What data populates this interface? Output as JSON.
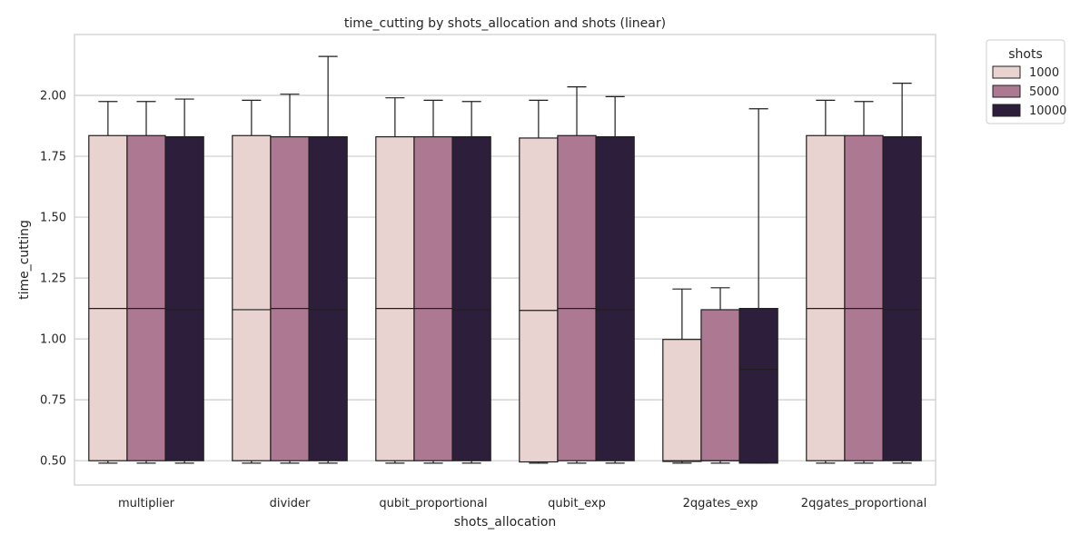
{
  "chart_data": {
    "type": "box",
    "title": "time_cutting by shots_allocation and shots (linear)",
    "xlabel": "shots_allocation",
    "ylabel": "time_cutting",
    "categories": [
      "multiplier",
      "divider",
      "qubit_proportional",
      "qubit_exp",
      "2qgates_exp",
      "2qgates_proportional"
    ],
    "ylim": [
      0.4,
      2.25
    ],
    "yticks": [
      "0.50",
      "0.75",
      "1.00",
      "1.25",
      "1.50",
      "1.75",
      "2.00"
    ],
    "grid": true,
    "legend": {
      "title": "shots",
      "placement": "outside-top-right"
    },
    "series": [
      {
        "name": "1000",
        "color": "#e8d3d0",
        "boxes": [
          {
            "min": 0.49,
            "q1": 0.5,
            "median": 1.125,
            "q3": 1.835,
            "max": 1.975
          },
          {
            "min": 0.49,
            "q1": 0.5,
            "median": 1.12,
            "q3": 1.835,
            "max": 1.98
          },
          {
            "min": 0.49,
            "q1": 0.5,
            "median": 1.125,
            "q3": 1.83,
            "max": 1.99
          },
          {
            "min": 0.49,
            "q1": 0.495,
            "median": 1.117,
            "q3": 1.825,
            "max": 1.98
          },
          {
            "min": 0.49,
            "q1": 0.497,
            "median": 0.5,
            "q3": 0.998,
            "max": 1.205
          },
          {
            "min": 0.49,
            "q1": 0.5,
            "median": 1.125,
            "q3": 1.835,
            "max": 1.98
          }
        ]
      },
      {
        "name": "5000",
        "color": "#ad7892",
        "boxes": [
          {
            "min": 0.49,
            "q1": 0.5,
            "median": 1.125,
            "q3": 1.835,
            "max": 1.975
          },
          {
            "min": 0.49,
            "q1": 0.5,
            "median": 1.125,
            "q3": 1.83,
            "max": 2.005
          },
          {
            "min": 0.49,
            "q1": 0.5,
            "median": 1.125,
            "q3": 1.83,
            "max": 1.98
          },
          {
            "min": 0.49,
            "q1": 0.5,
            "median": 1.125,
            "q3": 1.835,
            "max": 2.035
          },
          {
            "min": 0.49,
            "q1": 0.5,
            "median": 0.5,
            "q3": 1.12,
            "max": 1.21
          },
          {
            "min": 0.49,
            "q1": 0.5,
            "median": 1.125,
            "q3": 1.835,
            "max": 1.975
          }
        ]
      },
      {
        "name": "10000",
        "color": "#2d1e3b",
        "boxes": [
          {
            "min": 0.49,
            "q1": 0.5,
            "median": 1.12,
            "q3": 1.83,
            "max": 1.985
          },
          {
            "min": 0.49,
            "q1": 0.5,
            "median": 1.12,
            "q3": 1.83,
            "max": 2.16
          },
          {
            "min": 0.49,
            "q1": 0.5,
            "median": 1.12,
            "q3": 1.83,
            "max": 1.975
          },
          {
            "min": 0.49,
            "q1": 0.5,
            "median": 1.12,
            "q3": 1.83,
            "max": 1.995
          },
          {
            "min": 0.49,
            "q1": 0.49,
            "median": 0.875,
            "q3": 1.125,
            "max": 1.945
          },
          {
            "min": 0.49,
            "q1": 0.5,
            "median": 1.12,
            "q3": 1.83,
            "max": 2.05
          }
        ]
      }
    ]
  }
}
